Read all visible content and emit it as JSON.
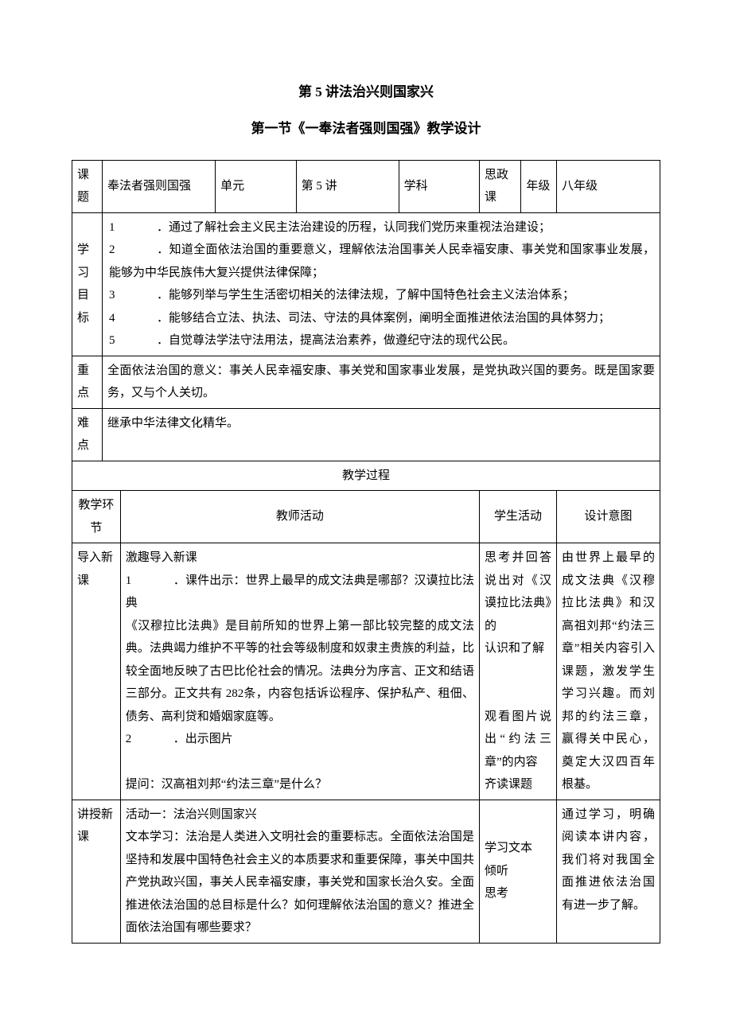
{
  "titles": {
    "main": "第 5 讲法治兴则国家兴",
    "sub": "第一节《一奉法者强则国强》教学设计"
  },
  "header_row": {
    "topic_label": "课题",
    "topic_value": "奉法者强则国强",
    "unit_label": "单元",
    "unit_value": "第 5 讲",
    "subject_label": "学科",
    "subject_value": "思政课",
    "grade_label": "年级",
    "grade_value": "八年级"
  },
  "objectives": {
    "label": "学习目标",
    "items": [
      {
        "n": "1",
        "text": "．通过了解社会主义民主法治建设的历程，认同我们党历来重视法治建设；"
      },
      {
        "n": "2",
        "text": "．知道全面依法治国的重要意义，理解依法治国事关人民幸福安康、事关党和国家事业发展，能够为中华民族伟大复兴提供法律保障；",
        "wrap_prefix": "展，"
      },
      {
        "n": "3",
        "text": "．能够列举与学生生活密切相关的法律法规，了解中国特色社会主义法治体系；"
      },
      {
        "n": "4",
        "text": "．能够结合立法、执法、司法、守法的具体案例，阐明全面推进依法治国的具体努力；"
      },
      {
        "n": "5",
        "text": "．自觉尊法学法守法用法，提高法治素养，做遵纪守法的现代公民。"
      }
    ]
  },
  "keypoint": {
    "label": "重点",
    "text": "全面依法治国的意义：事关人民幸福安康、事关党和国家事业发展，是党执政兴国的要务。既是国家要务，又与个人关切。"
  },
  "difficulty": {
    "label": "难点",
    "text": "继承中华法律文化精华。"
  },
  "process_heading": "教学过程",
  "columns": {
    "stage": "教学环节",
    "teacher": "教师活动",
    "student": "学生活动",
    "intent": "设计意图"
  },
  "rows": [
    {
      "stage": "导入新课",
      "teacher_blocks": [
        "激趣导入新课",
        {
          "n": "1",
          "text": "．课件出示：世界上最早的成文法典是哪部？汉谟拉比法典"
        },
        "  《汉穆拉比法典》是目前所知的世界上第一部比较完整的成文法典。法典竭力维护不平等的社会等级制度和奴隶主贵族的利益，比较全面地反映了古巴比伦社会的情况。法典分为序言、正文和结语三部分。正文共有 282条，内容包括诉讼程序、保护私产、租佃、债务、高利贷和婚姻家庭等。",
        {
          "n": "2",
          "text": "．出示图片"
        },
        "",
        "提问：汉高祖刘邦“约法三章”是什么？"
      ],
      "student_blocks": [
        "思考并回答说出对《汉谟拉比法典》的",
        "认识和了解",
        "",
        "",
        "观看图片说出“约法三章”的内容",
        "齐读课题"
      ],
      "intent": "由世界上最早的成文法典《汉穆拉比法典》和汉高祖刘邦“约法三章”相关内容引入课题，激发学生学习兴趣。而刘邦的约法三章，赢得关中民心，奠定大汉四百年根基。"
    },
    {
      "stage": "讲授新课",
      "teacher_blocks": [
        "活动一：法治兴则国家兴",
        "文本学习：法治是人类进入文明社会的重要标志。全面依法治国是坚持和发展中国特色社会主义的本质要求和重要保障，事关中国共产党执政兴国，事关人民幸福安康，事关党和国家长治久安。全面推进依法治国的总目标是什么？如何理解依法治国的意义？推进全面依法治国有哪些要求？"
      ],
      "student_blocks": [
        "学习文本",
        "倾听",
        "思考"
      ],
      "intent": "通过学习，明确阅读本讲内容，我们将对我国全面推进依法治国有进一步了解。"
    }
  ]
}
